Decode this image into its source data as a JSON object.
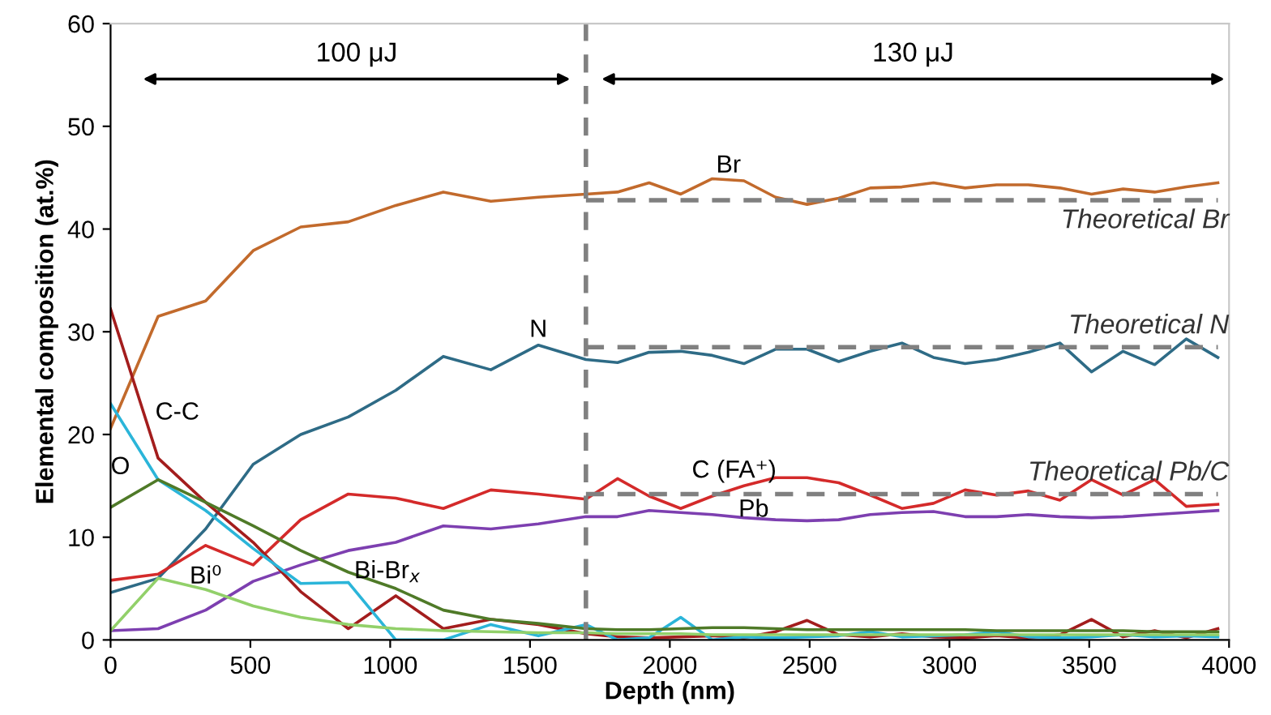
{
  "chart_data": {
    "type": "line",
    "xlabel": "Depth (nm)",
    "ylabel": "Elemental composition (at.%)",
    "xlim": [
      0,
      4000
    ],
    "xticks": [
      0,
      500,
      1000,
      1500,
      2000,
      2500,
      3000,
      3500,
      4000
    ],
    "ylim": [
      0,
      60
    ],
    "yticks": [
      0,
      10,
      20,
      30,
      40,
      50,
      60
    ],
    "grid": false,
    "marker": "none",
    "x": [
      0,
      170,
      340,
      510,
      680,
      850,
      1020,
      1190,
      1360,
      1530,
      1700,
      1813,
      1926,
      2039,
      2152,
      2265,
      2378,
      2491,
      2604,
      2717,
      2830,
      2943,
      3056,
      3169,
      3282,
      3395,
      3508,
      3621,
      3734,
      3847,
      3960
    ],
    "series": [
      {
        "color": "#c26a2c",
        "values": [
          20.6,
          31.5,
          33,
          37.9,
          40.2,
          40.7,
          42.3,
          43.6,
          42.7,
          43.1,
          43.4,
          43.6,
          44.5,
          43.4,
          44.9,
          44.7,
          43.1,
          42.4,
          43,
          44,
          44.1,
          44.5,
          44,
          44.3,
          44.3,
          44,
          43.4,
          43.9,
          43.6,
          44.1,
          44.5
        ]
      },
      {
        "color": "#2e6b86",
        "values": [
          4.6,
          6.0,
          10.8,
          17.1,
          20.0,
          21.7,
          24.3,
          27.6,
          26.3,
          28.7,
          27.3,
          27.0,
          28.0,
          28.1,
          27.7,
          26.9,
          28.3,
          28.3,
          27.1,
          28.1,
          28.9,
          27.5,
          26.9,
          27.3,
          28.0,
          28.9,
          26.1,
          28.1,
          26.8,
          29.3,
          27.5
        ]
      },
      {
        "color": "#d42a2a",
        "values": [
          5.8,
          6.4,
          9.2,
          7.3,
          11.7,
          14.2,
          13.8,
          12.8,
          14.6,
          14.2,
          13.7,
          15.7,
          14.0,
          12.8,
          14.0,
          15.0,
          15.8,
          15.8,
          15.3,
          14.1,
          12.8,
          13.3,
          14.6,
          14.1,
          14.5,
          13.6,
          15.6,
          14.1,
          15.6,
          13.0,
          13.2
        ]
      },
      {
        "color": "#7d3fb0",
        "values": [
          0.9,
          1.1,
          2.9,
          5.7,
          7.3,
          8.7,
          9.5,
          11.1,
          10.8,
          11.3,
          12.0,
          12.0,
          12.6,
          12.4,
          12.2,
          11.9,
          11.7,
          11.6,
          11.7,
          12.2,
          12.4,
          12.5,
          12.0,
          12.0,
          12.2,
          12.0,
          11.9,
          12.0,
          12.2,
          12.4,
          12.6
        ]
      },
      {
        "color": "#a31d1d",
        "values": [
          32.2,
          17.7,
          13.4,
          9.5,
          4.7,
          1.1,
          4.3,
          1.1,
          2.0,
          1.5,
          0.6,
          0.3,
          0.2,
          0.3,
          0.4,
          0.2,
          0.8,
          1.9,
          0.5,
          0.3,
          0.6,
          0.3,
          0.2,
          0.4,
          0.2,
          0.5,
          2.0,
          0.3,
          0.9,
          0.2,
          1.1
        ]
      },
      {
        "color": "#2bb5d9",
        "values": [
          23.0,
          15.6,
          12.6,
          8.9,
          5.5,
          5.6,
          0,
          0,
          1.5,
          0.4,
          1.5,
          0,
          0.2,
          2.2,
          0,
          0.3,
          0.2,
          0.3,
          0.4,
          0.8,
          0.3,
          0.4,
          0.5,
          0.8,
          0.3,
          0.2,
          0.3,
          0.5,
          0.3,
          0.4,
          0.3
        ]
      },
      {
        "color": "#4f7a28",
        "values": [
          12.9,
          15.6,
          13.4,
          11.1,
          8.7,
          6.6,
          5.0,
          2.9,
          2.0,
          1.6,
          1.1,
          1.0,
          1.0,
          1.1,
          1.2,
          1.2,
          1.1,
          1.0,
          1.0,
          1.0,
          1.0,
          1.0,
          1.0,
          0.9,
          0.9,
          0.9,
          0.9,
          0.9,
          0.8,
          0.8,
          0.8
        ]
      },
      {
        "color": "#92d06a",
        "values": [
          0.9,
          6.0,
          4.9,
          3.3,
          2.2,
          1.5,
          1.1,
          0.9,
          0.8,
          0.7,
          0.7,
          0.6,
          0.6,
          0.6,
          0.5,
          0.5,
          0.5,
          0.5,
          0.5,
          0.5,
          0.5,
          0.5,
          0.5,
          0.5,
          0.5,
          0.5,
          0.5,
          0.5,
          0.5,
          0.5,
          0.5
        ]
      },
      {
        "name": "Theoretical Br",
        "color": "#808080",
        "line_style": "dashed",
        "values": [
          null,
          null,
          null,
          null,
          null,
          null,
          null,
          null,
          null,
          null,
          42.8,
          42.8,
          42.8,
          42.8,
          42.8,
          42.8,
          42.8,
          42.8,
          42.8,
          42.8,
          42.8,
          42.8,
          42.8,
          42.8,
          42.8,
          42.8,
          42.8,
          42.8,
          42.8,
          42.8,
          42.8
        ]
      },
      {
        "name": "Theoretical N",
        "color": "#808080",
        "line_style": "dashed",
        "values": [
          null,
          null,
          null,
          null,
          null,
          null,
          null,
          null,
          null,
          null,
          28.5,
          28.5,
          28.5,
          28.5,
          28.5,
          28.5,
          28.5,
          28.5,
          28.5,
          28.5,
          28.5,
          28.5,
          28.5,
          28.5,
          28.5,
          28.5,
          28.5,
          28.5,
          28.5,
          28.5,
          28.5
        ]
      },
      {
        "name": "Theoretical Pb/C",
        "color": "#808080",
        "line_style": "dashed",
        "values": [
          null,
          null,
          null,
          null,
          null,
          null,
          null,
          null,
          null,
          null,
          14.2,
          14.2,
          14.2,
          14.2,
          14.2,
          14.2,
          14.2,
          14.2,
          14.2,
          14.2,
          14.2,
          14.2,
          14.2,
          14.2,
          14.2,
          14.2,
          14.2,
          14.2,
          14.2,
          14.2,
          14.2
        ]
      }
    ],
    "ref_lines": [
      {
        "axis": "x",
        "value": 1700,
        "color": "#808080",
        "line_style": "dashed"
      }
    ],
    "annotations": [
      "100 μJ",
      "130 μJ",
      {
        "text": "Br",
        "x": 2210,
        "y": 45
      },
      {
        "text": "N",
        "x": 1530,
        "y": 29
      },
      {
        "text": "C (FA⁺)",
        "x": 2230,
        "y": 15.3
      },
      {
        "text": "Pb",
        "x": 2300,
        "y": 11.5
      },
      {
        "text": "C-C",
        "x": 100,
        "y": 23.7
      },
      {
        "text": "O",
        "x": 60,
        "y": 20.4
      },
      {
        "text": "Bi⁰",
        "x": 340,
        "y": 5
      },
      {
        "text": "Bi-Br$_{x}$",
        "x": 990,
        "y": 5.5
      }
    ]
  }
}
